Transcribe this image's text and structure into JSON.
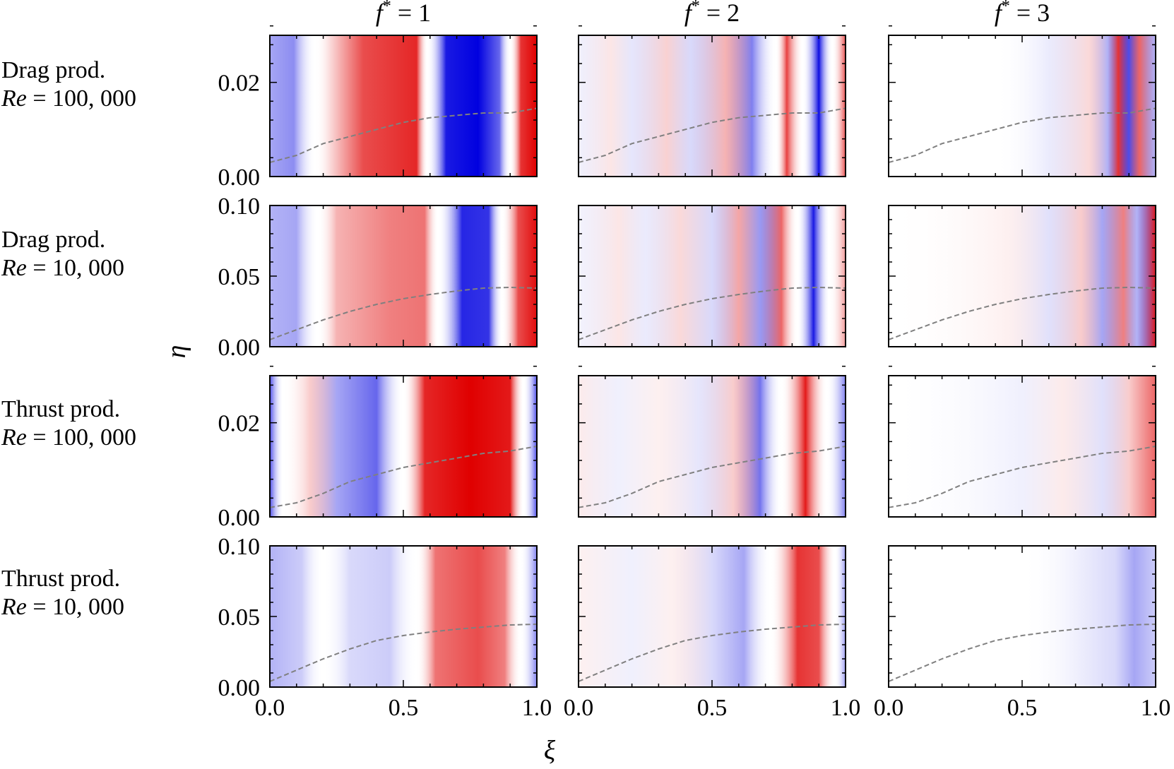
{
  "columns": [
    {
      "prefix": "f",
      "sup": "*",
      "suffix": " = 1"
    },
    {
      "prefix": "f",
      "sup": "*",
      "suffix": " = 2"
    },
    {
      "prefix": "f",
      "sup": "*",
      "suffix": " = 3"
    }
  ],
  "rows": [
    {
      "line1": "Drag prod.",
      "re_sym": "Re",
      "re_val": " = 100, 000",
      "yticks": [
        "0.00",
        "0.02"
      ]
    },
    {
      "line1": "Drag prod.",
      "re_sym": "Re",
      "re_val": " = 10, 000",
      "yticks": [
        "0.00",
        "0.05",
        "0.10"
      ]
    },
    {
      "line1": "Thrust prod.",
      "re_sym": "Re",
      "re_val": " = 100, 000",
      "yticks": [
        "0.00",
        "0.02"
      ]
    },
    {
      "line1": "Thrust prod.",
      "re_sym": "Re",
      "re_val": " = 10, 000",
      "yticks": [
        "0.00",
        "0.05",
        "0.10"
      ]
    }
  ],
  "xlabel": "ξ",
  "ylabel": "η",
  "xticks": [
    "0.0",
    "0.5",
    "1.0"
  ],
  "colors": {
    "positive": "#e00000",
    "negative": "#0000e0",
    "neutral": "#ffffff",
    "boundary_layer": "#808080"
  },
  "chart_data": {
    "type": "heatmap",
    "colormap": "bwr",
    "grid": false,
    "x_range": [
      0,
      1
    ],
    "y_ranges": [
      [
        0,
        0.03
      ],
      [
        0,
        0.1
      ],
      [
        0,
        0.03
      ],
      [
        0,
        0.1
      ]
    ],
    "boundary_layer_curves": [
      {
        "row": 0,
        "x": [
          0.0,
          0.1,
          0.2,
          0.3,
          0.4,
          0.5,
          0.6,
          0.7,
          0.8,
          0.9,
          1.0
        ],
        "y": [
          0.003,
          0.0045,
          0.007,
          0.0085,
          0.01,
          0.0115,
          0.0125,
          0.013,
          0.0135,
          0.0135,
          0.0145
        ]
      },
      {
        "row": 1,
        "x": [
          0.0,
          0.1,
          0.2,
          0.3,
          0.4,
          0.5,
          0.6,
          0.7,
          0.8,
          0.9,
          1.0
        ],
        "y": [
          0.005,
          0.012,
          0.019,
          0.025,
          0.03,
          0.034,
          0.037,
          0.0395,
          0.0415,
          0.042,
          0.0415
        ]
      },
      {
        "row": 2,
        "x": [
          0.0,
          0.1,
          0.2,
          0.3,
          0.4,
          0.5,
          0.6,
          0.7,
          0.8,
          0.9,
          1.0
        ],
        "y": [
          0.002,
          0.003,
          0.005,
          0.0075,
          0.009,
          0.0105,
          0.0115,
          0.0125,
          0.0135,
          0.014,
          0.015
        ]
      },
      {
        "row": 3,
        "x": [
          0.0,
          0.1,
          0.2,
          0.3,
          0.4,
          0.5,
          0.6,
          0.7,
          0.8,
          0.9,
          1.0
        ],
        "y": [
          0.004,
          0.012,
          0.02,
          0.027,
          0.033,
          0.0365,
          0.039,
          0.041,
          0.0425,
          0.044,
          0.0445
        ]
      }
    ]
  }
}
